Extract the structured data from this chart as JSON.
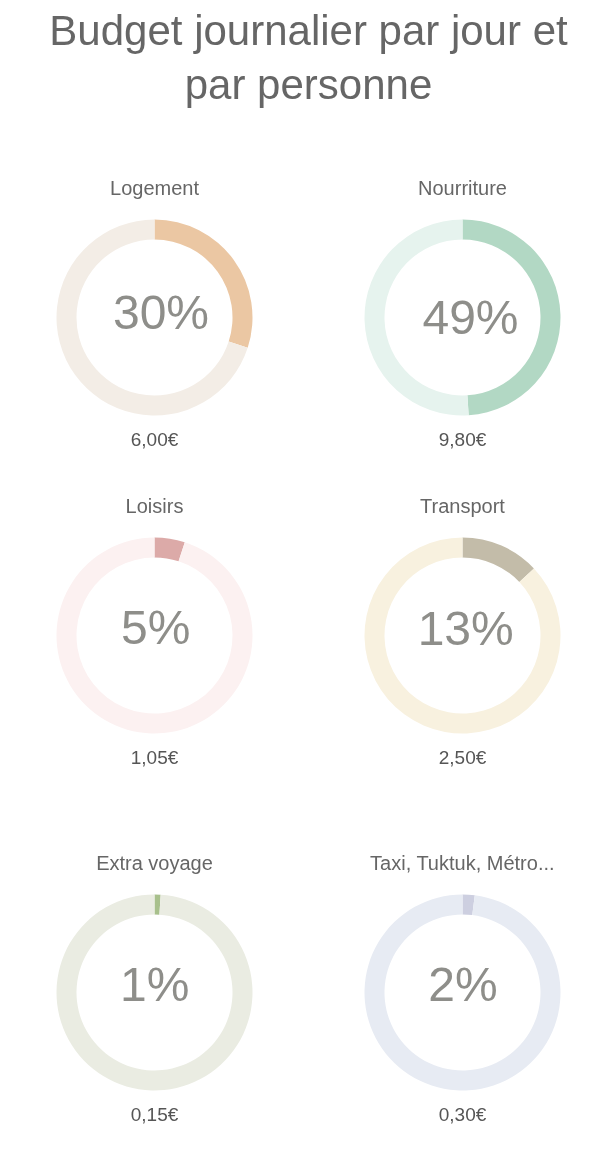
{
  "chart_data": [
    {
      "type": "other",
      "title": "Budget journalier par jour et par personne"
    },
    {
      "type": "donut",
      "title": "Logement",
      "categories": [
        null,
        null
      ],
      "values": [
        30,
        70
      ],
      "colors": [
        "#ebc7a3",
        "#f3ede6"
      ],
      "value_labels": [
        "30%",
        null
      ],
      "annotations": [
        "6,00€"
      ]
    },
    {
      "type": "donut",
      "title": "Nourriture",
      "categories": [
        null,
        null
      ],
      "values": [
        49,
        51
      ],
      "colors": [
        "#b2d8c4",
        "#e6f3ee"
      ],
      "value_labels": [
        "49%",
        null
      ],
      "annotations": [
        "9,80€"
      ]
    },
    {
      "type": "donut",
      "title": "Loisirs",
      "categories": [
        null,
        null
      ],
      "values": [
        5,
        95
      ],
      "colors": [
        "#dcaaa8",
        "#fcf1f1"
      ],
      "value_labels": [
        "5%",
        null
      ],
      "annotations": [
        "1,05€"
      ]
    },
    {
      "type": "donut",
      "title": "Transport",
      "categories": [
        null,
        null
      ],
      "values": [
        13,
        87
      ],
      "colors": [
        "#c3bca9",
        "#f8f1df"
      ],
      "value_labels": [
        "13%",
        null
      ],
      "annotations": [
        "2,50€"
      ]
    },
    {
      "type": "donut",
      "title": "Extra voyage",
      "categories": [
        null,
        null
      ],
      "values": [
        1,
        99
      ],
      "colors": [
        "#a8c08c",
        "#eaece2"
      ],
      "value_labels": [
        "1%",
        null
      ],
      "annotations": [
        "0,15€"
      ]
    },
    {
      "type": "donut",
      "title": "Taxi, Tuktuk, Métro...",
      "categories": [
        null,
        null
      ],
      "values": [
        2,
        98
      ],
      "colors": [
        "#cdcfe0",
        "#e7ebf3"
      ],
      "value_labels": [
        "2%",
        null
      ],
      "annotations": [
        "0,30€"
      ]
    }
  ]
}
